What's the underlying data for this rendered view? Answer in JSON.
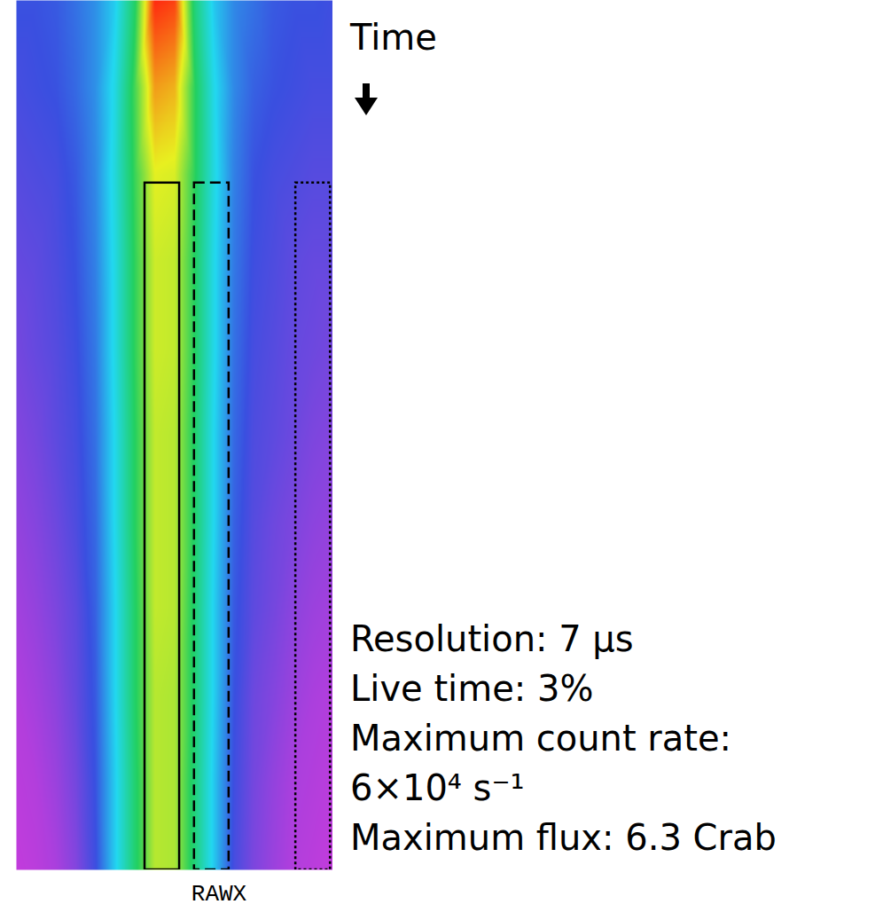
{
  "chart_data": {
    "type": "heatmap",
    "x_label": "RAWX",
    "y_label": "Time",
    "tick_labels": false,
    "xlim": [
      0,
      64
    ],
    "ylim": [
      0,
      100
    ],
    "x": [
      0,
      4,
      8,
      12,
      16,
      20,
      24,
      28,
      32,
      36,
      40,
      44,
      48,
      52,
      56,
      60,
      64
    ],
    "y": [
      0,
      10,
      20,
      30,
      40,
      50,
      60,
      70,
      80,
      90,
      100
    ],
    "cells": [
      [
        2.6,
        2.6,
        2.7,
        3.0,
        3.4,
        4.2,
        6.0,
        9.6,
        9.4,
        5.8,
        4.1,
        3.3,
        3.0,
        2.7,
        2.6,
        2.6,
        2.5
      ],
      [
        2.4,
        2.5,
        2.6,
        2.9,
        3.4,
        4.5,
        6.4,
        8.6,
        8.4,
        6.2,
        4.4,
        3.3,
        2.8,
        2.6,
        2.5,
        2.4,
        2.4
      ],
      [
        2.2,
        2.3,
        2.4,
        2.7,
        3.3,
        4.6,
        6.3,
        7.8,
        7.7,
        6.2,
        4.5,
        3.2,
        2.6,
        2.4,
        2.3,
        2.2,
        2.2
      ],
      [
        2.0,
        2.1,
        2.3,
        2.6,
        3.2,
        4.5,
        6.2,
        7.6,
        7.5,
        6.1,
        4.4,
        3.1,
        2.5,
        2.3,
        2.1,
        2.0,
        2.0
      ],
      [
        1.8,
        2.0,
        2.2,
        2.5,
        3.1,
        4.5,
        6.2,
        7.6,
        7.5,
        6.1,
        4.4,
        3.0,
        2.4,
        2.2,
        2.0,
        1.9,
        1.8
      ],
      [
        1.6,
        1.8,
        2.1,
        2.4,
        3.0,
        4.4,
        6.1,
        7.5,
        7.4,
        6.0,
        4.3,
        2.9,
        2.3,
        2.1,
        1.9,
        1.7,
        1.6
      ],
      [
        1.4,
        1.6,
        1.9,
        2.3,
        2.9,
        4.4,
        6.1,
        7.5,
        7.4,
        6.0,
        4.3,
        2.8,
        2.2,
        1.9,
        1.7,
        1.5,
        1.4
      ],
      [
        1.2,
        1.4,
        1.7,
        2.1,
        2.8,
        4.3,
        6.0,
        7.5,
        7.4,
        5.9,
        4.2,
        2.7,
        2.1,
        1.8,
        1.5,
        1.3,
        1.2
      ],
      [
        1.0,
        1.2,
        1.5,
        2.0,
        2.7,
        4.3,
        6.0,
        7.4,
        7.3,
        5.9,
        4.2,
        2.6,
        1.9,
        1.6,
        1.3,
        1.1,
        1.0
      ],
      [
        0.9,
        1.0,
        1.3,
        1.8,
        2.6,
        4.2,
        5.9,
        7.4,
        7.3,
        5.8,
        4.1,
        2.5,
        1.8,
        1.4,
        1.1,
        1.0,
        0.9
      ],
      [
        0.8,
        0.9,
        1.1,
        1.6,
        2.5,
        4.2,
        5.9,
        7.4,
        7.3,
        5.8,
        4.1,
        2.4,
        1.7,
        1.3,
        1.0,
        0.9,
        0.8
      ]
    ],
    "regions": [
      {
        "x": [
          26,
          33
        ],
        "y": [
          21,
          100
        ],
        "line_style": "solid"
      },
      {
        "x": [
          36,
          43
        ],
        "y": [
          21,
          100
        ],
        "line_style": "dashed"
      },
      {
        "x": [
          56.5,
          63.5
        ],
        "y": [
          21,
          100
        ],
        "line_style": "dotted"
      }
    ],
    "annotations": [
      "Resolution: 7 μs",
      "Live time: 3%",
      "Maximum count rate:",
      "6×10⁴ s⁻¹",
      "Maximum flux: 6.3 Crab"
    ]
  }
}
